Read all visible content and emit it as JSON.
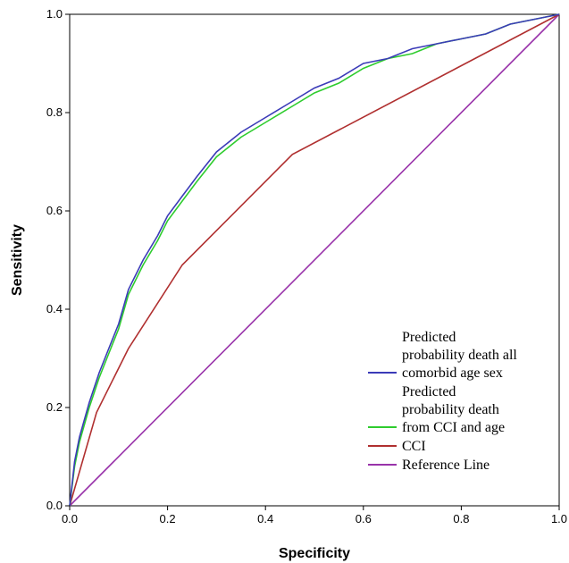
{
  "chart_data": {
    "type": "line",
    "title": "",
    "xlabel": "Specificity",
    "ylabel": "Sensitivity",
    "xlim": [
      0.0,
      1.0
    ],
    "ylim": [
      0.0,
      1.0
    ],
    "xticks": [
      "0.0",
      "0.2",
      "0.4",
      "0.6",
      "0.8",
      "1.0"
    ],
    "yticks": [
      "0.0",
      "0.2",
      "0.4",
      "0.6",
      "0.8",
      "1.0"
    ],
    "grid": false,
    "legend_position": "bottom-right",
    "series": [
      {
        "name": "Predicted probability death all comorbid age sex",
        "color": "#3b3bb8",
        "x": [
          0.0,
          0.01,
          0.02,
          0.04,
          0.06,
          0.08,
          0.1,
          0.12,
          0.15,
          0.18,
          0.2,
          0.23,
          0.26,
          0.3,
          0.35,
          0.4,
          0.45,
          0.5,
          0.55,
          0.6,
          0.65,
          0.7,
          0.75,
          0.8,
          0.85,
          0.9,
          0.95,
          1.0
        ],
        "y": [
          0.0,
          0.09,
          0.14,
          0.21,
          0.27,
          0.32,
          0.37,
          0.44,
          0.5,
          0.55,
          0.59,
          0.63,
          0.67,
          0.72,
          0.76,
          0.79,
          0.82,
          0.85,
          0.87,
          0.9,
          0.91,
          0.93,
          0.94,
          0.95,
          0.96,
          0.98,
          0.99,
          1.0
        ]
      },
      {
        "name": "Predicted probability death from CCI and age",
        "color": "#2ecc2e",
        "x": [
          0.0,
          0.01,
          0.02,
          0.04,
          0.06,
          0.08,
          0.1,
          0.12,
          0.15,
          0.18,
          0.2,
          0.23,
          0.26,
          0.3,
          0.35,
          0.4,
          0.45,
          0.5,
          0.55,
          0.6,
          0.65,
          0.7,
          0.75,
          0.8,
          0.85,
          0.9,
          0.95,
          1.0
        ],
        "y": [
          0.0,
          0.08,
          0.13,
          0.2,
          0.26,
          0.31,
          0.36,
          0.43,
          0.49,
          0.54,
          0.58,
          0.62,
          0.66,
          0.71,
          0.75,
          0.78,
          0.81,
          0.84,
          0.86,
          0.89,
          0.91,
          0.92,
          0.94,
          0.95,
          0.96,
          0.98,
          0.99,
          1.0
        ]
      },
      {
        "name": "CCI",
        "color": "#b03030",
        "x": [
          0.0,
          0.055,
          0.12,
          0.23,
          0.455,
          1.0
        ],
        "y": [
          0.0,
          0.19,
          0.32,
          0.49,
          0.715,
          1.0
        ]
      },
      {
        "name": "Reference Line",
        "color": "#9933aa",
        "x": [
          0.0,
          1.0
        ],
        "y": [
          0.0,
          1.0
        ]
      }
    ],
    "legend": [
      {
        "lines": [
          "Predicted",
          "probability death all",
          "comorbid age sex"
        ]
      },
      {
        "lines": [
          "Predicted",
          "probability death",
          "from CCI and age"
        ]
      },
      {
        "lines": [
          "CCI"
        ]
      },
      {
        "lines": [
          "Reference Line"
        ]
      }
    ]
  }
}
